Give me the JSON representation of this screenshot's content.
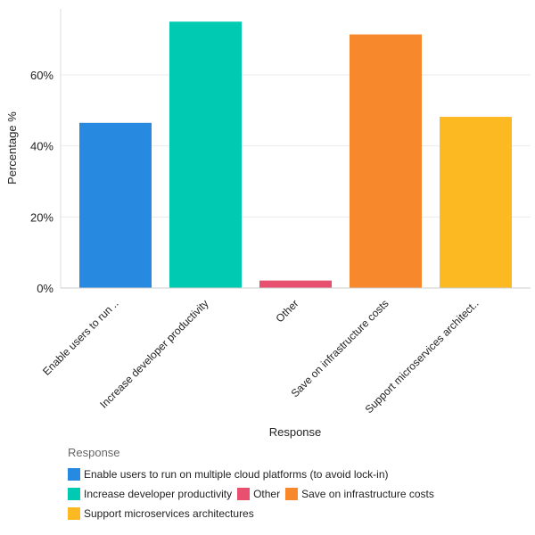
{
  "chart_data": {
    "type": "bar",
    "xlabel": "Response",
    "ylabel": "Percentage %",
    "categories": [
      "Enable users to run ..",
      "Increase developer productivity",
      "Other",
      "Save on infrastructure costs",
      "Support microservices architect.."
    ],
    "values": [
      46.5,
      75.0,
      2.1,
      71.4,
      48.2
    ],
    "colors": [
      "#2889e0",
      "#00cbb2",
      "#e8506f",
      "#f7882c",
      "#fdb922"
    ],
    "ylim": [
      0,
      79
    ],
    "yticks": [
      0,
      20,
      40,
      60
    ],
    "ytick_labels": [
      "0%",
      "20%",
      "40%",
      "60%"
    ],
    "grid": true,
    "legend": {
      "title": "Response",
      "placement": "bottom",
      "entries": [
        "Enable users to run on multiple cloud platforms (to avoid lock-in)",
        "Increase developer productivity",
        "Other",
        "Save on infrastructure costs",
        "Support microservices architectures"
      ]
    }
  }
}
